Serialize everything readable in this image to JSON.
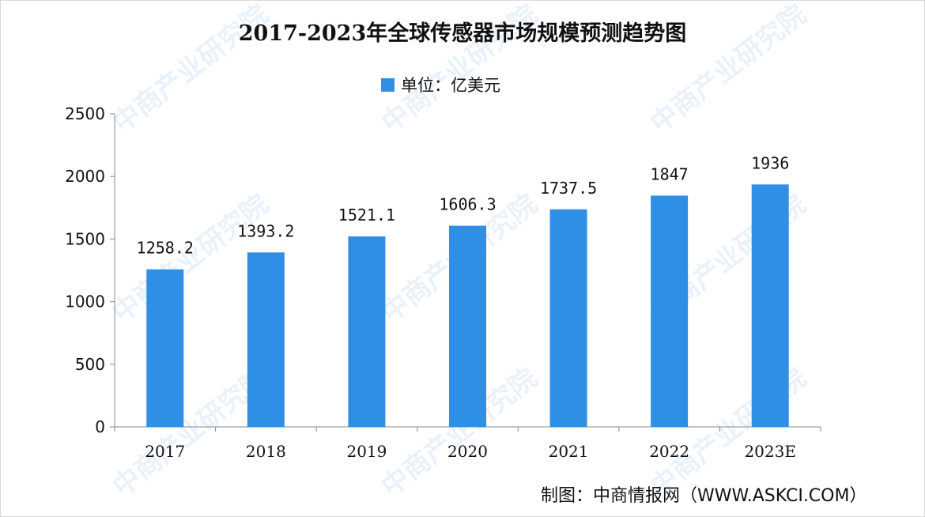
{
  "chart_data": {
    "type": "bar",
    "title": "2017-2023年全球传感器市场规模预测趋势图",
    "legend": "单位：亿美元",
    "categories": [
      "2017",
      "2018",
      "2019",
      "2020",
      "2021",
      "2022",
      "2023E"
    ],
    "values": [
      1258.2,
      1393.2,
      1521.1,
      1606.3,
      1737.5,
      1847,
      1936
    ],
    "data_labels": [
      "1258.2",
      "1393.2",
      "1521.1",
      "1606.3",
      "1737.5",
      "1847",
      "1936"
    ],
    "y_ticks": [
      "0",
      "500",
      "1000",
      "1500",
      "2000",
      "2500"
    ],
    "ylim": [
      0,
      2500
    ],
    "grid": false,
    "bar_color": "#2f8fe5",
    "legend_position": "top-center"
  },
  "source": "制图：中商情报网（WWW.ASKCI.COM）",
  "watermark": "中商产业研究院"
}
